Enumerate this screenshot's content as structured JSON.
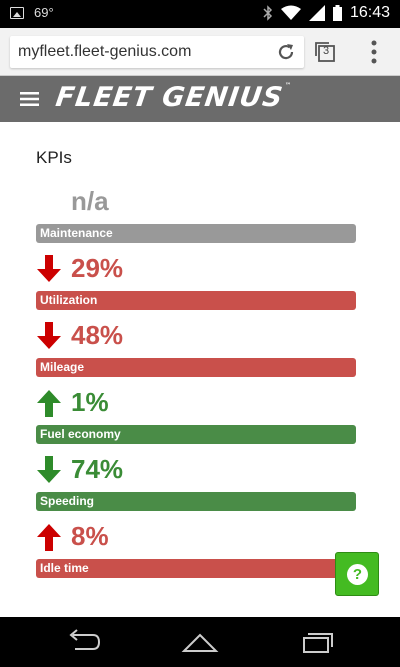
{
  "status_bar": {
    "temperature": "69°",
    "time": "16:43",
    "icons": [
      "image-icon",
      "bluetooth-icon",
      "wifi-icon",
      "signal-icon",
      "battery-icon"
    ]
  },
  "browser": {
    "url": "myfleet.fleet-genius.com",
    "tab_count": "3",
    "icons": [
      "reload-icon",
      "tabs-icon",
      "overflow-menu-icon"
    ]
  },
  "app": {
    "logo_text": "FLEET GENIUS",
    "logo_tm": "™"
  },
  "kpis": {
    "title": "KPIs",
    "items": [
      {
        "value": "n/a",
        "label": "Maintenance",
        "direction": "none",
        "color": "#999999",
        "text_color": "#999999"
      },
      {
        "value": "29%",
        "label": "Utilization",
        "direction": "down",
        "color": "#c9504b",
        "text_color": "#c9504b",
        "arrow_color": "#cc0000"
      },
      {
        "value": "48%",
        "label": "Mileage",
        "direction": "down",
        "color": "#c9504b",
        "text_color": "#c9504b",
        "arrow_color": "#cc0000"
      },
      {
        "value": "1%",
        "label": "Fuel economy",
        "direction": "up",
        "color": "#4a8c47",
        "text_color": "#3a8c36",
        "arrow_color": "#2e8b2a"
      },
      {
        "value": "74%",
        "label": "Speeding",
        "direction": "down",
        "color": "#4a8c47",
        "text_color": "#3a8c36",
        "arrow_color": "#2e8b2a"
      },
      {
        "value": "8%",
        "label": "Idle time",
        "direction": "up",
        "color": "#c9504b",
        "text_color": "#c9504b",
        "arrow_color": "#cc0000"
      }
    ]
  },
  "help": {
    "label": "?"
  },
  "nav": {
    "icons": [
      "back-icon",
      "home-icon",
      "recents-icon"
    ]
  }
}
